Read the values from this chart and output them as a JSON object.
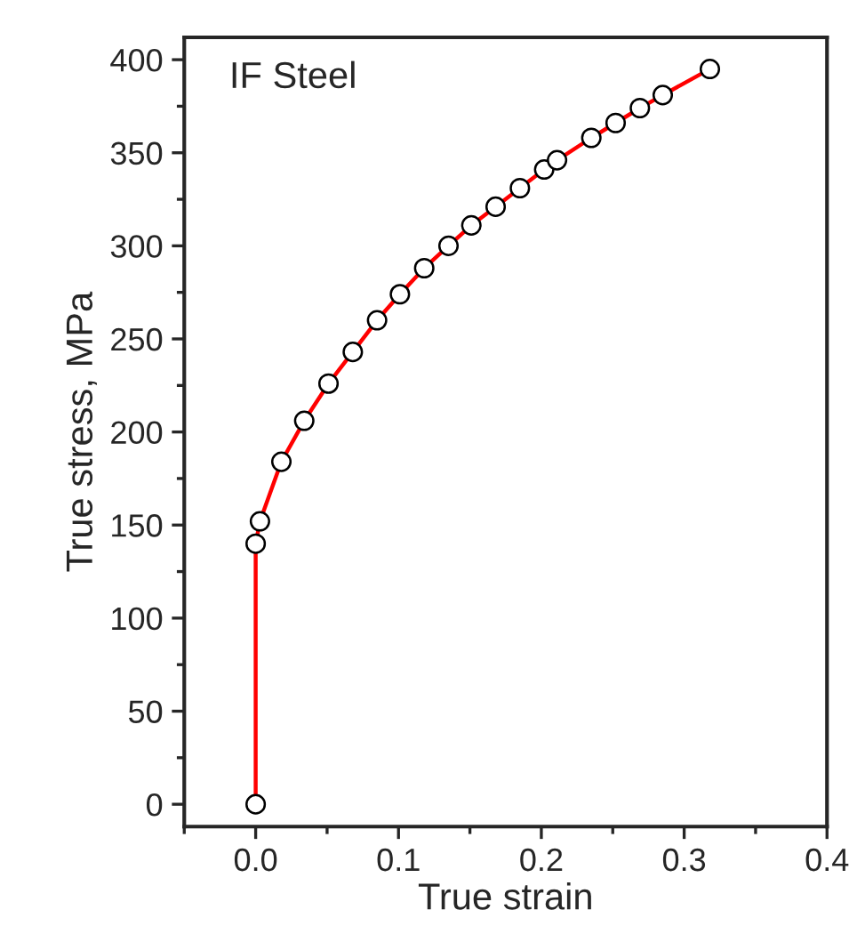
{
  "chart_data": {
    "type": "line",
    "xlabel": "True strain",
    "ylabel": "True stress, MPa",
    "annotations": [
      "IF Steel"
    ],
    "xlim": [
      -0.05,
      0.4
    ],
    "xticks": [
      {
        "value": 0,
        "label": "0.0"
      },
      0.1,
      0.2,
      0.3,
      0.4
    ],
    "ylim": [
      -12,
      412
    ],
    "yticks": [
      0,
      50,
      100,
      150,
      200,
      250,
      300,
      350,
      400
    ],
    "marker": "circle",
    "line_style": "solid",
    "grid": false,
    "legend": false,
    "series": [
      {
        "color": "#ff0000",
        "x": [
          0,
          0,
          0.003,
          0.018,
          0.034,
          0.051,
          0.068,
          0.085,
          0.101,
          0.118,
          0.135,
          0.151,
          0.168,
          0.185,
          0.202,
          0.211,
          0.235,
          0.252,
          0.269,
          0.285,
          0.318
        ],
        "values": [
          0,
          140,
          152,
          184,
          206,
          226,
          243,
          260,
          274,
          288,
          300,
          311,
          321,
          331,
          341,
          346,
          358,
          366,
          374,
          381,
          395
        ]
      }
    ]
  }
}
